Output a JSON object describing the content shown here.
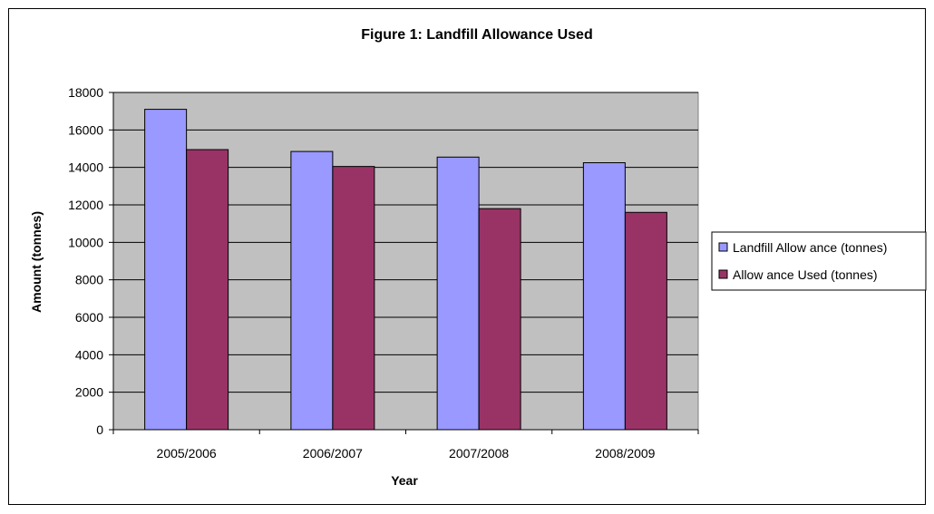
{
  "chart_data": {
    "type": "bar",
    "title": "Figure 1: Landfill Allowance Used",
    "xlabel": "Year",
    "ylabel": "Amount (tonnes)",
    "categories": [
      "2005/2006",
      "2006/2007",
      "2007/2008",
      "2008/2009"
    ],
    "series": [
      {
        "name": "Landfill Allow ance (tonnes)",
        "color": "#9999FF",
        "values": [
          17100,
          14850,
          14550,
          14250
        ]
      },
      {
        "name": "Allow ance Used (tonnes)",
        "color": "#993366",
        "values": [
          14950,
          14050,
          11800,
          11600
        ]
      }
    ],
    "ylim": [
      0,
      18000
    ],
    "yticks": [
      0,
      2000,
      4000,
      6000,
      8000,
      10000,
      12000,
      14000,
      16000,
      18000
    ],
    "grid": true,
    "plot_background": "#C0C0C0",
    "legend_position": "right"
  }
}
